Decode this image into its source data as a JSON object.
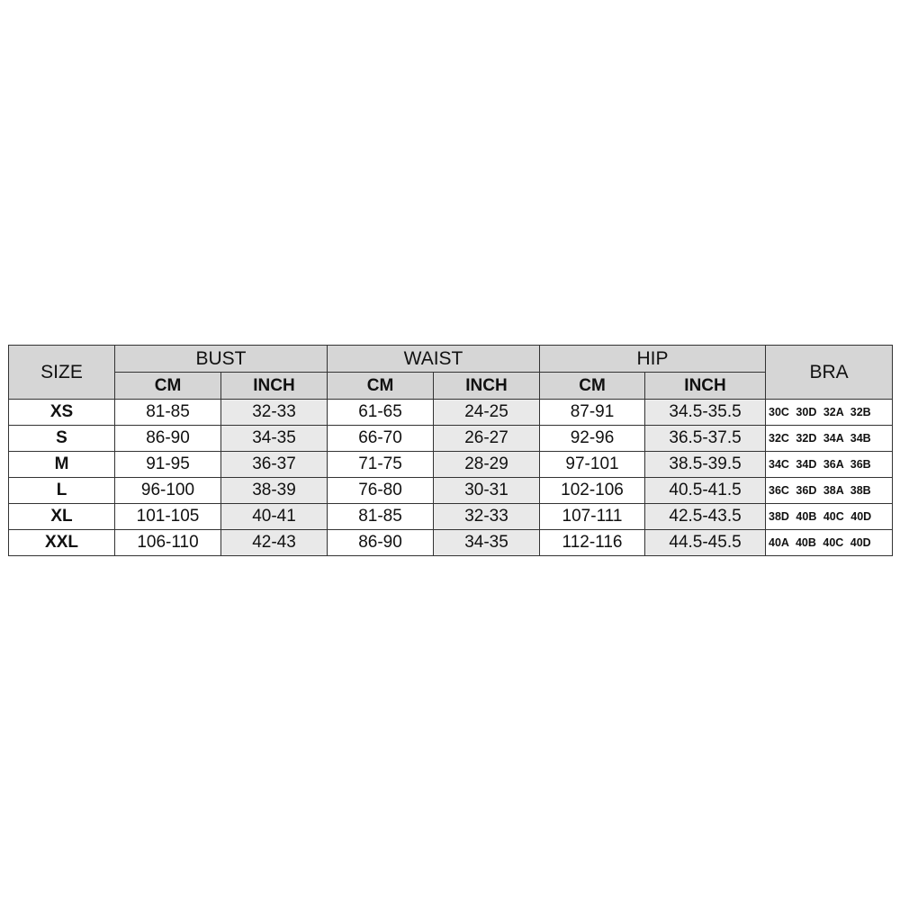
{
  "headers": {
    "size": "SIZE",
    "groups": [
      "BUST",
      "WAIST",
      "HIP"
    ],
    "bra": "BRA",
    "sub": [
      "CM",
      "INCH",
      "CM",
      "INCH",
      "CM",
      "INCH"
    ]
  },
  "rows": [
    {
      "size": "XS",
      "cells": [
        "81-85",
        "32-33",
        "61-65",
        "24-25",
        "87-91",
        "34.5-35.5"
      ],
      "bra": "30C 30D 32A 32B"
    },
    {
      "size": "S",
      "cells": [
        "86-90",
        "34-35",
        "66-70",
        "26-27",
        "92-96",
        "36.5-37.5"
      ],
      "bra": "32C 32D 34A 34B"
    },
    {
      "size": "M",
      "cells": [
        "91-95",
        "36-37",
        "71-75",
        "28-29",
        "97-101",
        "38.5-39.5"
      ],
      "bra": "34C 34D 36A 36B"
    },
    {
      "size": "L",
      "cells": [
        "96-100",
        "38-39",
        "76-80",
        "30-31",
        "102-106",
        "40.5-41.5"
      ],
      "bra": "36C 36D 38A 38B"
    },
    {
      "size": "XL",
      "cells": [
        "101-105",
        "40-41",
        "81-85",
        "32-33",
        "107-111",
        "42.5-43.5"
      ],
      "bra": "38D 40B 40C 40D"
    },
    {
      "size": "XXL",
      "cells": [
        "106-110",
        "42-43",
        "86-90",
        "34-35",
        "112-116",
        "44.5-45.5"
      ],
      "bra": "40A 40B 40C 40D"
    }
  ],
  "colors": {
    "header_bg": "#d6d6d6",
    "inch_bg": "#e9e9e9",
    "border": "#333333"
  }
}
